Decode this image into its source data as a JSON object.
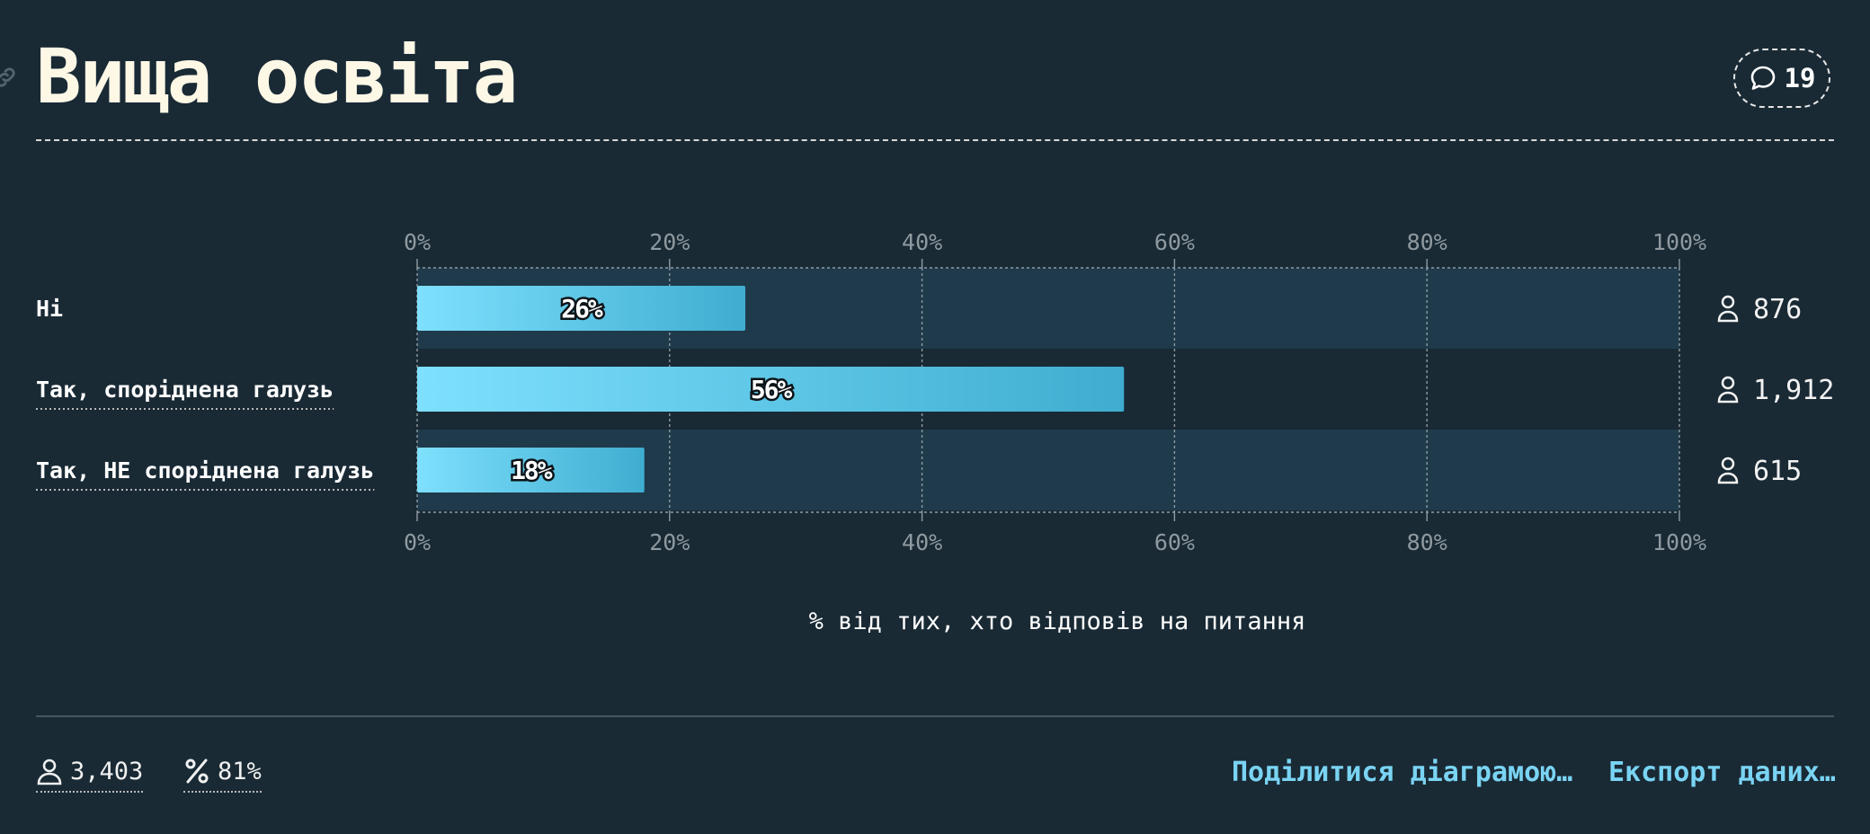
{
  "title": "Вища освіта",
  "comments": {
    "icon": "speech-bubble-icon",
    "count": "19"
  },
  "chart_data": {
    "type": "bar",
    "orientation": "horizontal",
    "categories": [
      "Ні",
      "Так, споріднена галузь",
      "Так, НЕ споріднена галузь"
    ],
    "values": [
      26,
      56,
      18
    ],
    "value_labels": [
      "26%",
      "56%",
      "18%"
    ],
    "counts": [
      "876",
      "1,912",
      "615"
    ],
    "xlim": [
      0,
      100
    ],
    "ticks": [
      0,
      20,
      40,
      60,
      80,
      100
    ],
    "tick_labels": [
      "0%",
      "20%",
      "40%",
      "60%",
      "80%",
      "100%"
    ],
    "xlabel": "% від тих, хто відповів на питання",
    "grid": true,
    "colors": {
      "bar_start": "#7ee0fd",
      "bar_end": "#3fadd0",
      "band": "#1f3a4b",
      "background": "#192a35"
    }
  },
  "footer": {
    "respondents": "3,403",
    "response_rate": "81%",
    "share_label": "Поділитися діаграмою…",
    "export_label": "Експорт даних…"
  }
}
